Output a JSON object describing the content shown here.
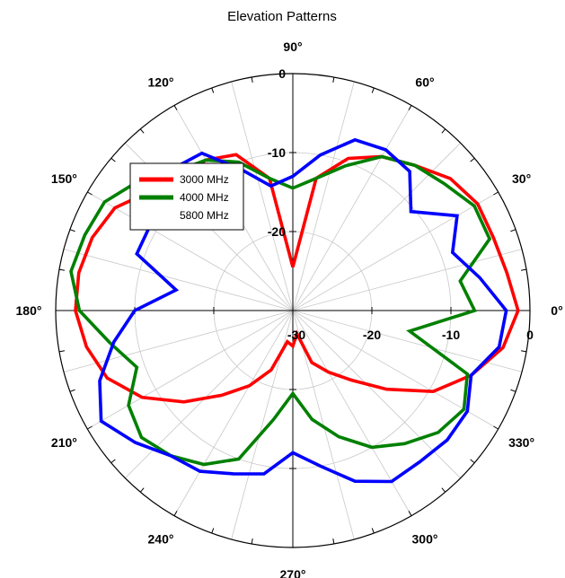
{
  "chart_data": {
    "type": "polar-line",
    "title": "Elevation Patterns",
    "angle_unit": "deg",
    "angle_ticks": [
      "0°",
      "30°",
      "60°",
      "90°",
      "120°",
      "150°",
      "180°",
      "210°",
      "240°",
      "270°",
      "300°",
      "330°"
    ],
    "angle_tick_values": [
      0,
      30,
      60,
      90,
      120,
      150,
      180,
      210,
      240,
      270,
      300,
      330
    ],
    "radial_ticks": [
      "-30",
      "-20",
      "-10",
      "0"
    ],
    "radial_tick_values": [
      -30,
      -20,
      -10,
      0
    ],
    "radial_range": [
      -30,
      0
    ],
    "grid": true,
    "legend_position": "upper-left",
    "series": [
      {
        "name": "3000 MHz",
        "color": "#ff0000",
        "points": [
          [
            0,
            -1.5
          ],
          [
            10,
            -2.5
          ],
          [
            20,
            -3
          ],
          [
            30,
            -3
          ],
          [
            40,
            -4
          ],
          [
            50,
            -6
          ],
          [
            60,
            -7.5
          ],
          [
            70,
            -9.5
          ],
          [
            80,
            -13
          ],
          [
            90,
            -24.5
          ],
          [
            100,
            -13
          ],
          [
            110,
            -9
          ],
          [
            120,
            -8
          ],
          [
            130,
            -8
          ],
          [
            140,
            -6.5
          ],
          [
            150,
            -4
          ],
          [
            160,
            -3
          ],
          [
            170,
            -2.5
          ],
          [
            180,
            -2.5
          ],
          [
            190,
            -3.5
          ],
          [
            200,
            -5
          ],
          [
            210,
            -8
          ],
          [
            220,
            -12
          ],
          [
            230,
            -16
          ],
          [
            240,
            -19
          ],
          [
            250,
            -22
          ],
          [
            260,
            -26
          ],
          [
            270,
            -25.5
          ],
          [
            280,
            -27
          ],
          [
            290,
            -23
          ],
          [
            300,
            -21
          ],
          [
            310,
            -18.5
          ],
          [
            320,
            -14.5
          ],
          [
            330,
            -9.5
          ],
          [
            340,
            -6
          ],
          [
            350,
            -3
          ]
        ]
      },
      {
        "name": "4000 MHz",
        "color": "#008000",
        "points": [
          [
            0,
            -7
          ],
          [
            10,
            -8.5
          ],
          [
            20,
            -3.5
          ],
          [
            30,
            -3.5
          ],
          [
            40,
            -5
          ],
          [
            50,
            -6
          ],
          [
            60,
            -7.5
          ],
          [
            70,
            -10.5
          ],
          [
            80,
            -13
          ],
          [
            90,
            -14.5
          ],
          [
            100,
            -13
          ],
          [
            110,
            -10
          ],
          [
            120,
            -8
          ],
          [
            130,
            -7
          ],
          [
            140,
            -4.5
          ],
          [
            150,
            -2.5
          ],
          [
            160,
            -2
          ],
          [
            170,
            -1.5
          ],
          [
            180,
            -3
          ],
          [
            190,
            -6.5
          ],
          [
            200,
            -9
          ],
          [
            210,
            -6
          ],
          [
            220,
            -5
          ],
          [
            230,
            -6
          ],
          [
            240,
            -7.5
          ],
          [
            250,
            -10
          ],
          [
            260,
            -16
          ],
          [
            270,
            -19.5
          ],
          [
            280,
            -16
          ],
          [
            290,
            -13
          ],
          [
            300,
            -10
          ],
          [
            310,
            -8
          ],
          [
            320,
            -6
          ],
          [
            330,
            -5
          ],
          [
            340,
            -6.5
          ],
          [
            350,
            -15
          ]
        ]
      },
      {
        "name": "5800 MHz",
        "color": "#0000ff",
        "points": [
          [
            0,
            -3
          ],
          [
            10,
            -6
          ],
          [
            20,
            -8.5
          ],
          [
            30,
            -6
          ],
          [
            40,
            -10.5
          ],
          [
            50,
            -7
          ],
          [
            60,
            -6.5
          ],
          [
            70,
            -7
          ],
          [
            80,
            -10
          ],
          [
            90,
            -13
          ],
          [
            100,
            -14
          ],
          [
            110,
            -11
          ],
          [
            120,
            -7
          ],
          [
            130,
            -6.5
          ],
          [
            140,
            -9
          ],
          [
            150,
            -9
          ],
          [
            160,
            -9
          ],
          [
            170,
            -15
          ],
          [
            180,
            -10
          ],
          [
            190,
            -7
          ],
          [
            200,
            -4
          ],
          [
            210,
            -2
          ],
          [
            220,
            -4
          ],
          [
            230,
            -6
          ],
          [
            240,
            -6.5
          ],
          [
            250,
            -8
          ],
          [
            260,
            -9
          ],
          [
            270,
            -12
          ],
          [
            280,
            -10
          ],
          [
            290,
            -7
          ],
          [
            300,
            -5
          ],
          [
            310,
            -5
          ],
          [
            320,
            -4.5
          ],
          [
            330,
            -4.5
          ],
          [
            340,
            -6
          ],
          [
            350,
            -3.5
          ]
        ]
      }
    ]
  }
}
